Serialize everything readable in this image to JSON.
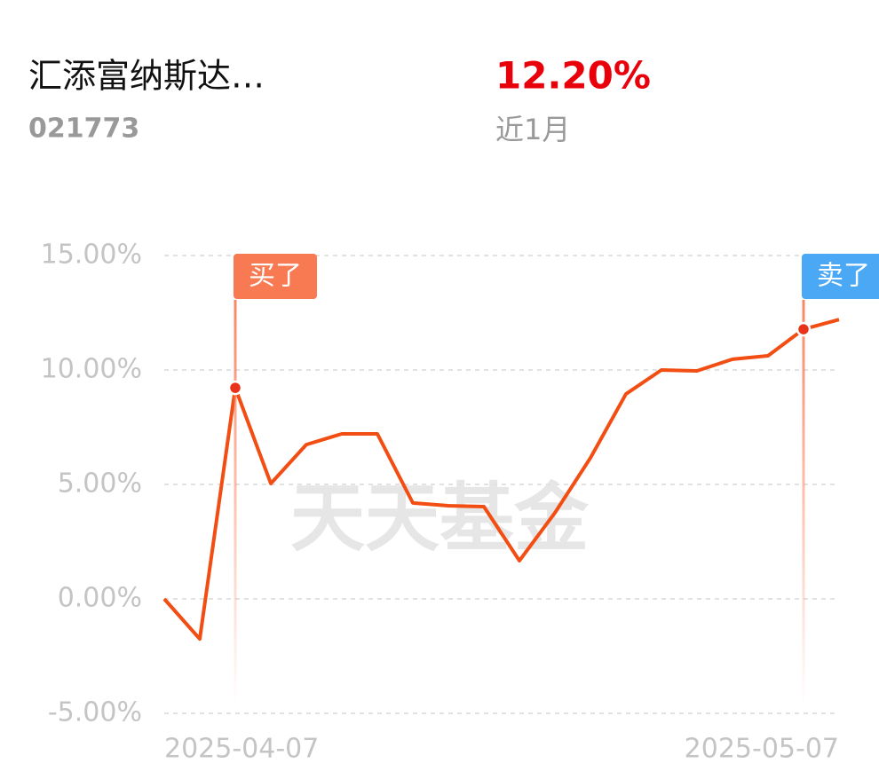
{
  "header": {
    "name": "汇添富纳斯达…",
    "code": "021773",
    "return": "12.20%",
    "period": "近1月"
  },
  "chart_data": {
    "type": "line",
    "watermark": "天天基金",
    "categories": [
      "2025-04-07",
      null,
      null,
      null,
      null,
      null,
      null,
      null,
      null,
      null,
      null,
      null,
      null,
      null,
      null,
      null,
      null,
      null,
      null,
      "2025-05-07"
    ],
    "series": [
      {
        "color": "#f24d12",
        "values": [
          0,
          -1.75,
          9.22,
          5.04,
          6.74,
          7.21,
          7.21,
          4.19,
          4.07,
          4.03,
          1.67,
          3.76,
          6.16,
          8.95,
          10.0,
          9.96,
          10.47,
          10.62,
          11.78,
          12.2
        ]
      }
    ],
    "ylim": [
      -5,
      15
    ],
    "yticks": [
      {
        "value": -5,
        "label": "-5.00%"
      },
      {
        "value": 0,
        "label": "0.00%"
      },
      {
        "value": 5,
        "label": "5.00%"
      },
      {
        "value": 10,
        "label": "10.00%"
      },
      {
        "value": 15,
        "label": "15.00%"
      }
    ],
    "grid": true,
    "annotations": [
      {
        "label": "买了",
        "index": 2,
        "color": "#f77a52"
      },
      {
        "label": "卖了",
        "index": 18,
        "color": "#4aa8f5"
      }
    ]
  }
}
